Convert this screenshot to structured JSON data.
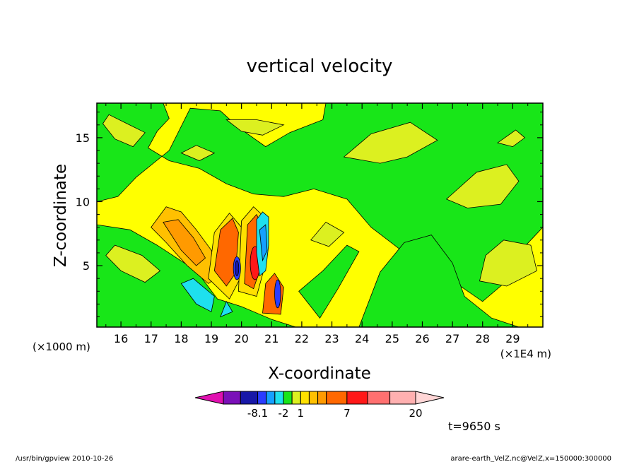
{
  "chart_data": {
    "type": "heatmap",
    "title": "vertical velocity",
    "xlabel": "X-coordinate",
    "ylabel": "Z-coordinate",
    "x_unit_left": "(×1000 m)",
    "x_unit_right": "(×1E4 m)",
    "xlim": [
      15.2,
      30.0
    ],
    "ylim": [
      0.2,
      17.7
    ],
    "x_ticks": [
      "16",
      "17",
      "18",
      "19",
      "20",
      "21",
      "22",
      "23",
      "24",
      "25",
      "26",
      "27",
      "28",
      "29"
    ],
    "y_ticks": [
      "5",
      "10",
      "15"
    ],
    "colorbar": {
      "labels": [
        {
          "level": 3,
          "text": "-8.1"
        },
        {
          "level": 6,
          "text": "-2"
        },
        {
          "level": 8,
          "text": "1"
        },
        {
          "level": 12,
          "text": "7"
        },
        {
          "level": 16,
          "text": "20"
        }
      ],
      "colors": [
        "#e010b0",
        "#7a10b8",
        "#1818a8",
        "#2a3cff",
        "#15a0ff",
        "#1ee0ee",
        "#18e618",
        "#dcf020",
        "#ffe000",
        "#ffc000",
        "#ff9a00",
        "#ff6800",
        "#ff1818",
        "#ff7070",
        "#ffb0b0",
        "#ffd6d6"
      ]
    },
    "time_label": "t=9650 s"
  },
  "footer": {
    "left": "/usr/bin/gpview   2010-10-26",
    "right": "arare-earth_VelZ.nc@VelZ,x=150000:300000"
  },
  "colors": {
    "positive_small": "#ffff00",
    "negative_small": "#00e000",
    "frame": "#000000"
  }
}
